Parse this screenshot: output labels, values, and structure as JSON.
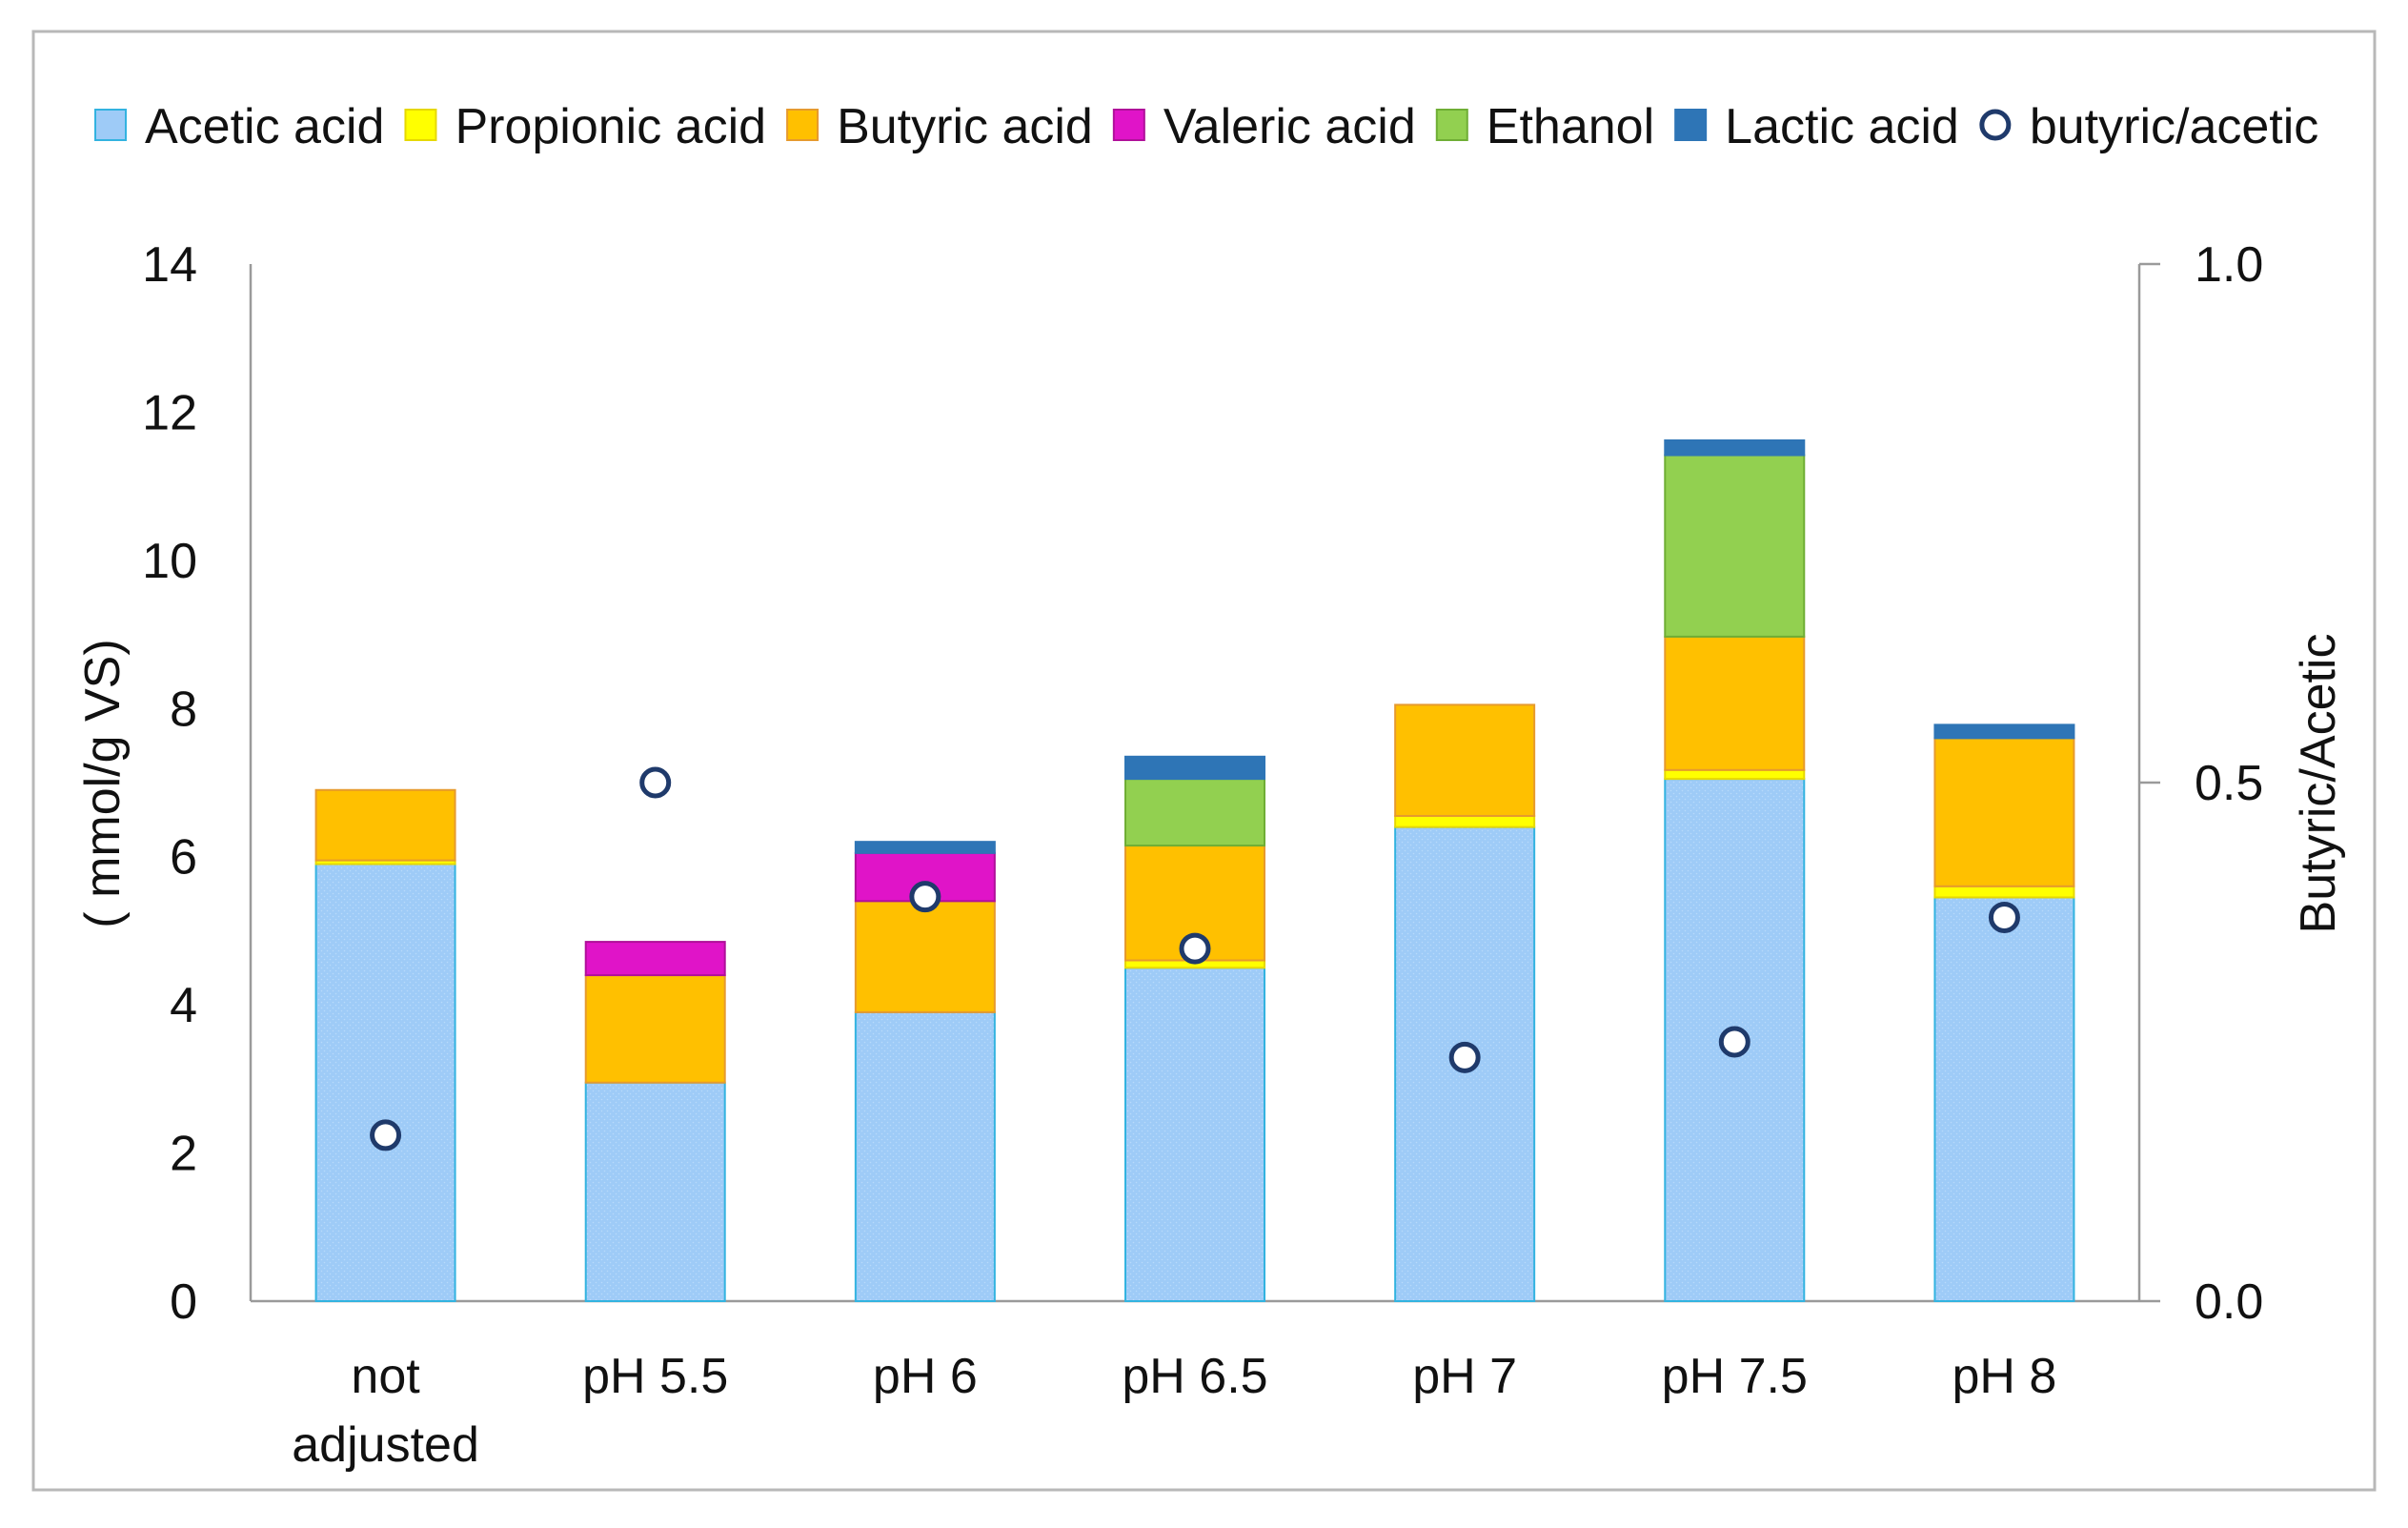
{
  "chart_data": {
    "type": "bar",
    "stacked": true,
    "title": "",
    "xlabel": "",
    "ylabel": "( mmol/g VS)",
    "y2label": "Butyric/Acetic",
    "ylim": [
      0,
      14
    ],
    "y2lim": [
      0,
      1.0
    ],
    "yticks": [
      0,
      2,
      4,
      6,
      8,
      10,
      12,
      14
    ],
    "y2ticks": [
      "0.0",
      "0.5",
      "1.0"
    ],
    "grid": false,
    "legend_position": "top",
    "categories": [
      [
        "not",
        "adjusted"
      ],
      [
        "pH 5.5"
      ],
      [
        "pH 6"
      ],
      [
        "pH 6.5"
      ],
      [
        "pH 7"
      ],
      [
        "pH 7.5"
      ],
      [
        "pH 8"
      ]
    ],
    "series": [
      {
        "name": "Acetic acid",
        "color": "#9ECBF7",
        "edge": "#33B3E0",
        "values": [
          5.9,
          2.95,
          3.9,
          4.5,
          6.4,
          7.05,
          5.45
        ]
      },
      {
        "name": "Propionic acid",
        "color": "#FFFF00",
        "edge": "#E6D800",
        "values": [
          0.05,
          0.0,
          0.0,
          0.1,
          0.15,
          0.12,
          0.15
        ]
      },
      {
        "name": "Butyric acid",
        "color": "#FFC000",
        "edge": "#E69A2E",
        "values": [
          0.95,
          1.45,
          1.5,
          1.55,
          1.5,
          1.8,
          2.0
        ]
      },
      {
        "name": "Valeric acid",
        "color": "#E014C8",
        "edge": "#B0109A",
        "values": [
          0.0,
          0.45,
          0.65,
          0.0,
          0.0,
          0.0,
          0.0
        ]
      },
      {
        "name": "Ethanol",
        "color": "#92D050",
        "edge": "#6FAE35",
        "values": [
          0.0,
          0.0,
          0.0,
          0.9,
          0.0,
          2.45,
          0.0
        ]
      },
      {
        "name": "Lactic acid",
        "color": "#2E75B6",
        "edge": "#2E75B6",
        "values": [
          0.0,
          0.0,
          0.15,
          0.3,
          0.0,
          0.2,
          0.18
        ]
      }
    ],
    "ratio_series": {
      "name": "butyric/acetic",
      "axis": "right",
      "marker": "circle",
      "values": [
        0.16,
        0.5,
        0.39,
        0.34,
        0.235,
        0.25,
        0.37
      ]
    }
  }
}
